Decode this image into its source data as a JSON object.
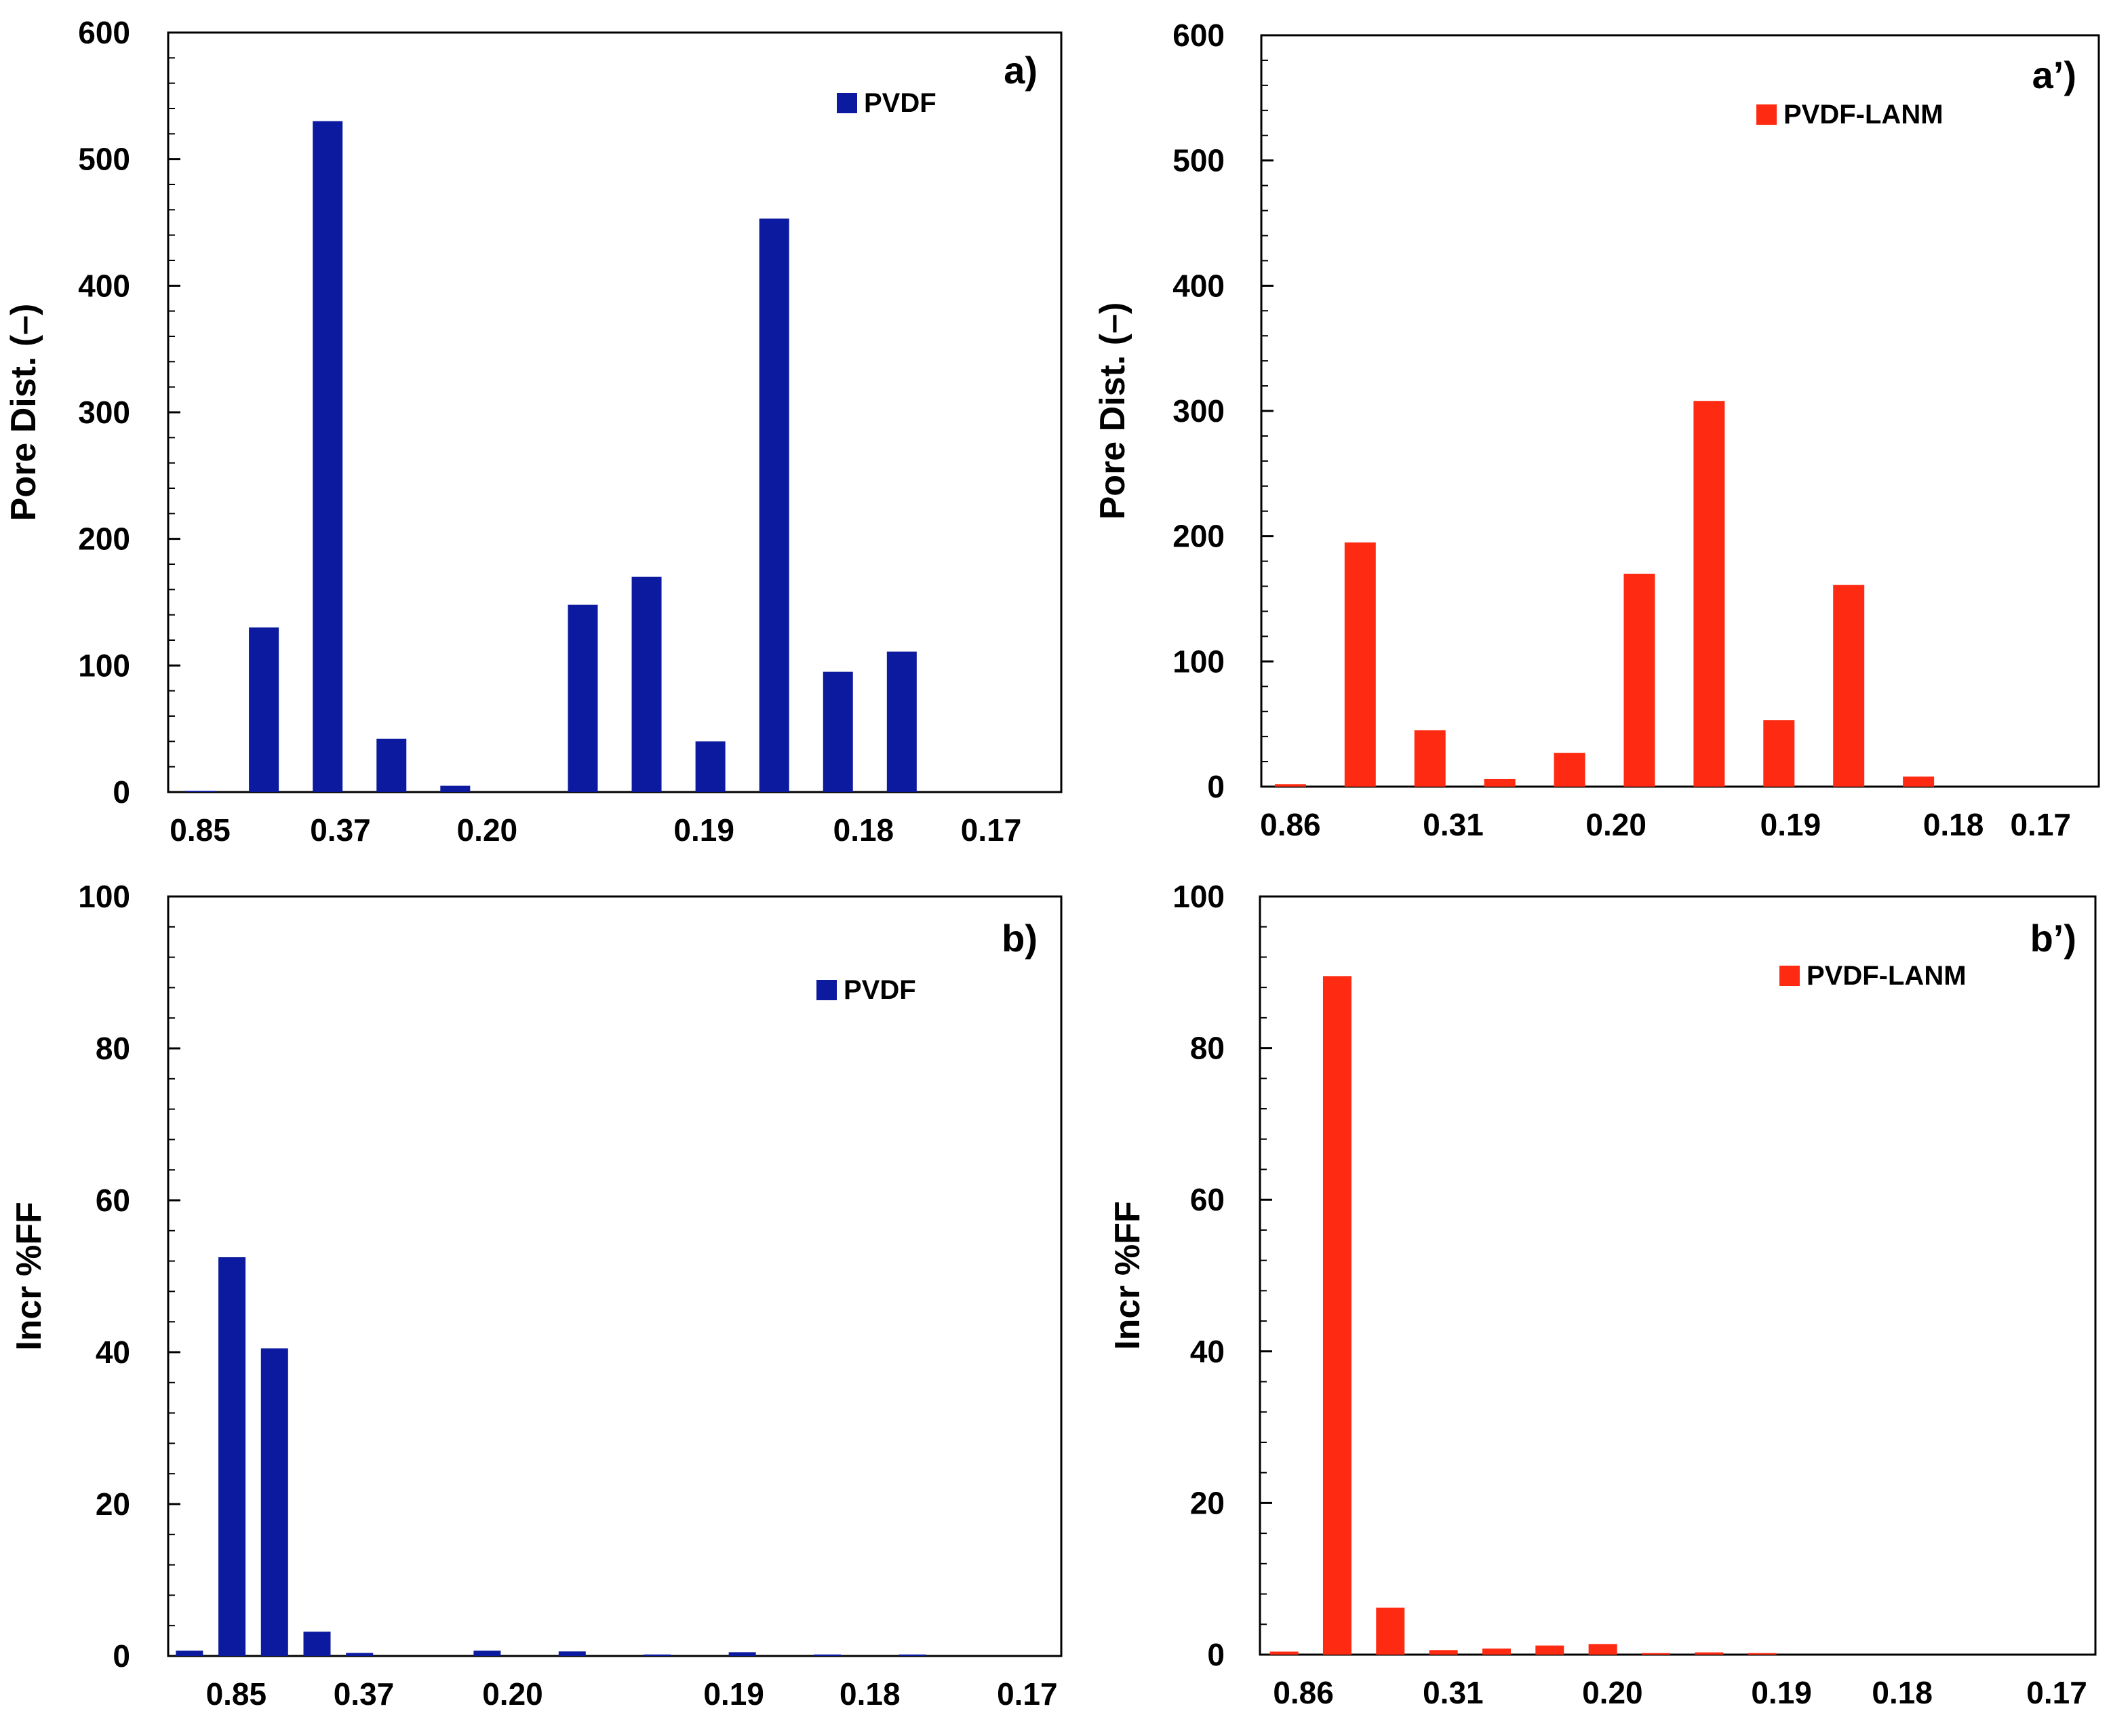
{
  "colors": {
    "pvdf": "#0B1A9E",
    "pvdf_lanm": "#FF2A12",
    "axis": "#000000"
  },
  "chart_data": [
    {
      "id": "a",
      "type": "bar",
      "panel_label": "a)",
      "legend": "PVDF",
      "color_key": "pvdf",
      "ylabel": "Pore Dist. (–)",
      "xlabel": "",
      "ylim": [
        0,
        600
      ],
      "yticks": [
        "0",
        "100",
        "200",
        "300",
        "400",
        "500",
        "600"
      ],
      "xtick_labels": [
        "0.85",
        "0.37",
        "0.20",
        "0.19",
        "0.18",
        "0.17"
      ],
      "xtick_pos": [
        0.5,
        2.7,
        5.0,
        8.4,
        10.9,
        12.9
      ],
      "x": [
        0.5,
        1.5,
        2.5,
        3.5,
        4.5,
        5.5,
        6.5,
        7.5,
        8.5,
        9.5,
        10.5,
        11.5,
        12.5,
        13.5
      ],
      "values": [
        1,
        130,
        530,
        42,
        5,
        0,
        148,
        170,
        40,
        453,
        95,
        111,
        0,
        0
      ],
      "xlim": [
        0,
        14
      ]
    },
    {
      "id": "a2",
      "type": "bar",
      "panel_label": "a’)",
      "legend": "PVDF-LANM",
      "color_key": "pvdf_lanm",
      "ylabel": "Pore Dist. (–)",
      "xlabel": "",
      "ylim": [
        0,
        600
      ],
      "yticks": [
        "0",
        "100",
        "200",
        "300",
        "400",
        "500",
        "600"
      ],
      "xtick_labels": [
        "0.86",
        "0.31",
        "0.20",
        "0.19",
        "0.18",
        "0.17"
      ],
      "xtick_pos": [
        0.5,
        3.3,
        6.1,
        9.1,
        11.9,
        13.4
      ],
      "x": [
        0.5,
        1.7,
        2.9,
        4.1,
        5.3,
        6.5,
        7.7,
        8.9,
        10.1,
        11.3,
        12.5,
        13.7
      ],
      "values": [
        2,
        195,
        45,
        6,
        27,
        170,
        308,
        53,
        161,
        8,
        0,
        0
      ],
      "xlim": [
        0,
        14.4
      ]
    },
    {
      "id": "b",
      "type": "bar",
      "panel_label": "b)",
      "legend": "PVDF",
      "color_key": "pvdf",
      "ylabel": "Incr %FF",
      "xlabel": "",
      "ylim": [
        0,
        100
      ],
      "yticks": [
        "0",
        "20",
        "40",
        "60",
        "80",
        "100"
      ],
      "xtick_labels": [
        "0.85",
        "0.37",
        "0.20",
        "0.19",
        "0.18",
        "0.17"
      ],
      "xtick_pos": [
        1.6,
        4.6,
        8.1,
        13.3,
        16.5,
        20.2
      ],
      "x": [
        0.5,
        1.5,
        2.5,
        3.5,
        4.5,
        5.5,
        6.5,
        7.5,
        8.5,
        9.5,
        10.5,
        11.5,
        12.5,
        13.5,
        14.5,
        15.5,
        16.5,
        17.5,
        18.5,
        19.5,
        20.5
      ],
      "values": [
        0.7,
        52.5,
        40.5,
        3.2,
        0.4,
        0,
        0,
        0.7,
        0,
        0.6,
        0,
        0.2,
        0,
        0.5,
        0,
        0.2,
        0,
        0.2,
        0,
        0,
        0
      ],
      "xlim": [
        0,
        21
      ]
    },
    {
      "id": "b2",
      "type": "bar",
      "panel_label": "b’)",
      "legend": "PVDF-LANM",
      "color_key": "pvdf_lanm",
      "ylabel": "Incr %FF",
      "xlabel": "",
      "ylim": [
        0,
        100
      ],
      "yticks": [
        "0",
        "20",
        "40",
        "60",
        "80",
        "100"
      ],
      "xtick_labels": [
        "0.86",
        "0.31",
        "0.20",
        "0.19",
        "0.18",
        "0.17"
      ],
      "xtick_pos": [
        0.9,
        4.0,
        7.3,
        10.8,
        13.3,
        16.5
      ],
      "x": [
        0.5,
        1.6,
        2.7,
        3.8,
        4.9,
        6.0,
        7.1,
        8.2,
        9.3,
        10.4,
        11.5,
        12.6,
        13.7,
        14.8,
        15.9,
        17.0
      ],
      "values": [
        0.4,
        89.5,
        6.2,
        0.6,
        0.8,
        1.2,
        1.4,
        0.2,
        0.3,
        0.2,
        0,
        0,
        0,
        0,
        0,
        0
      ],
      "xlim": [
        0,
        17.3
      ]
    }
  ]
}
